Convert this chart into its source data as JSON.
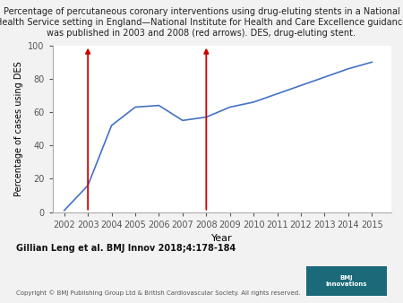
{
  "years": [
    2002,
    2003,
    2004,
    2005,
    2006,
    2007,
    2008,
    2009,
    2010,
    2011,
    2012,
    2013,
    2014,
    2015
  ],
  "values": [
    1,
    16,
    52,
    63,
    64,
    55,
    57,
    63,
    66,
    71,
    76,
    81,
    86,
    90
  ],
  "line_color": "#4472c4",
  "line_width": 1.2,
  "arrow_years": [
    2003,
    2008
  ],
  "arrow_color": "#cc0000",
  "xlim": [
    2001.5,
    2015.8
  ],
  "ylim": [
    0,
    100
  ],
  "yticks": [
    0,
    20,
    40,
    60,
    80,
    100
  ],
  "xticks": [
    2002,
    2003,
    2004,
    2005,
    2006,
    2007,
    2008,
    2009,
    2010,
    2011,
    2012,
    2013,
    2014,
    2015
  ],
  "xlabel": "Year",
  "ylabel": "Percentage of cases using DES",
  "title_line1": "Percentage of percutaneous coronary interventions using drug-eluting stents in a National",
  "title_line2": "Health Service setting in England—National Institute for Health and Care Excellence guidance",
  "title_line3": "was published in 2003 and 2008 (red arrows). DES, drug-eluting stent.",
  "title_fontsize": 7.0,
  "xlabel_fontsize": 8,
  "ylabel_fontsize": 7,
  "tick_fontsize": 7,
  "citation": "Gillian Leng et al. BMJ Innov 2018;4:178-184",
  "copyright": "Copyright © BMJ Publishing Group Ltd & British Cardiovascular Society. All rights reserved.",
  "background_color": "#f2f2f2",
  "plot_background": "#ffffff",
  "bmj_box_color": "#1b6a7a",
  "spine_color": "#aaaaaa"
}
